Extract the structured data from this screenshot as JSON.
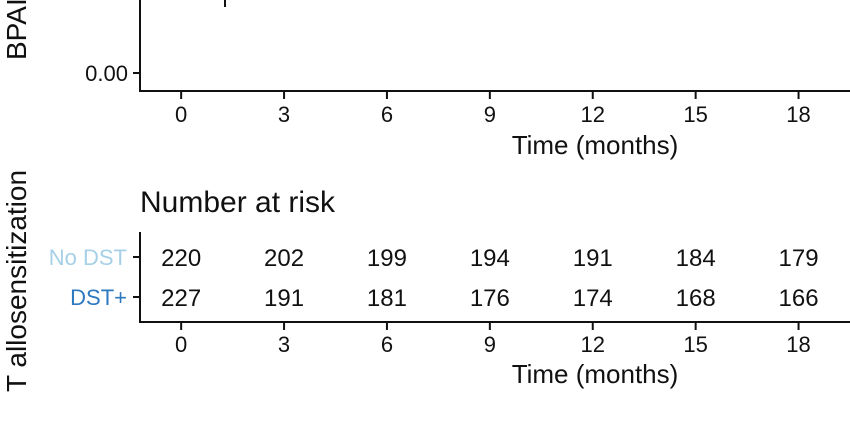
{
  "chart_data": [
    {
      "type": "line",
      "title": "",
      "xlabel": "Time (months)",
      "ylabel": "BPAR",
      "ylabel_visible_text": "BPAI",
      "x_ticks": [
        0,
        3,
        6,
        9,
        12,
        15,
        18
      ],
      "y_ticks": [
        0.0
      ],
      "y_tick_labels": [
        "0.00"
      ],
      "xlim": [
        -1.2,
        19.5
      ],
      "series": [],
      "grid": false
    },
    {
      "type": "table",
      "title": "Number at risk",
      "xlabel": "Time (months)",
      "ylabel": "T allosensitization",
      "x_ticks": [
        0,
        3,
        6,
        9,
        12,
        15,
        18
      ],
      "xlim": [
        -1.2,
        19.5
      ],
      "series": [
        {
          "name": "No DST",
          "color": "#a6d0e8",
          "values": [
            220,
            202,
            199,
            194,
            191,
            184,
            179
          ]
        },
        {
          "name": "DST+",
          "color": "#2e78c0",
          "values": [
            227,
            191,
            181,
            176,
            174,
            168,
            166
          ]
        }
      ]
    }
  ]
}
